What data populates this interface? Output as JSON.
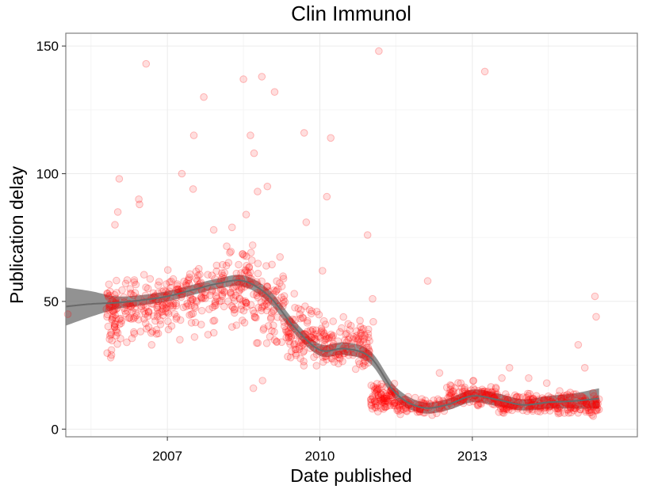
{
  "chart_data": {
    "type": "scatter",
    "title": "Clin Immunol",
    "xlabel": "Date published",
    "ylabel": "Publication delay",
    "xlim": [
      "2005-01-01",
      "2016-04-01"
    ],
    "ylim": [
      -3,
      155
    ],
    "x_ticks": [
      {
        "date": "2007-01-01",
        "label": "2007"
      },
      {
        "date": "2010-01-01",
        "label": "2010"
      },
      {
        "date": "2013-01-01",
        "label": "2013"
      }
    ],
    "y_ticks": [
      0,
      50,
      100,
      150
    ],
    "grid": true,
    "point_color": "#ff0000",
    "smooth_color": "#7f7f7f",
    "smooth_trend": [
      [
        "2005-01-01",
        48
      ],
      [
        "2005-07-01",
        49
      ],
      [
        "2006-01-01",
        49.5
      ],
      [
        "2006-07-01",
        50.5
      ],
      [
        "2007-01-01",
        52
      ],
      [
        "2007-07-01",
        54.5
      ],
      [
        "2008-01-01",
        57
      ],
      [
        "2008-07-01",
        58
      ],
      [
        "2009-01-01",
        52
      ],
      [
        "2009-07-01",
        40
      ],
      [
        "2010-01-01",
        31
      ],
      [
        "2010-07-01",
        31.5
      ],
      [
        "2011-01-01",
        28
      ],
      [
        "2011-07-01",
        14
      ],
      [
        "2012-01-01",
        8.5
      ],
      [
        "2012-07-01",
        9.5
      ],
      [
        "2013-01-01",
        13
      ],
      [
        "2013-07-01",
        11.5
      ],
      [
        "2014-01-01",
        9.5
      ],
      [
        "2014-07-01",
        10.5
      ],
      [
        "2015-01-01",
        11
      ],
      [
        "2015-07-01",
        12
      ]
    ],
    "smooth_band_halfwidth": [
      [
        "2005-01-01",
        7.5
      ],
      [
        "2005-07-01",
        5
      ],
      [
        "2006-01-01",
        2.5
      ],
      [
        "2006-07-01",
        2
      ],
      [
        "2007-01-01",
        2
      ],
      [
        "2007-07-01",
        2
      ],
      [
        "2008-01-01",
        2
      ],
      [
        "2008-07-01",
        2.2
      ],
      [
        "2009-01-01",
        2.5
      ],
      [
        "2009-07-01",
        2.5
      ],
      [
        "2010-01-01",
        2.3
      ],
      [
        "2010-07-01",
        2.5
      ],
      [
        "2011-01-01",
        2.5
      ],
      [
        "2011-07-01",
        2.5
      ],
      [
        "2012-01-01",
        2.2
      ],
      [
        "2012-07-01",
        2.2
      ],
      [
        "2013-01-01",
        2.5
      ],
      [
        "2013-07-01",
        2.5
      ],
      [
        "2014-01-01",
        2.2
      ],
      [
        "2014-07-01",
        2.5
      ],
      [
        "2015-01-01",
        3
      ],
      [
        "2015-07-01",
        4
      ]
    ],
    "points": [
      [
        "2005-01-15",
        45
      ],
      [
        "2006-08-01",
        143
      ],
      [
        "2008-07-01",
        137
      ],
      [
        "2008-11-10",
        138
      ],
      [
        "2009-02-10",
        132
      ],
      [
        "2007-09-20",
        130
      ],
      [
        "2011-03-01",
        148
      ],
      [
        "2013-04-01",
        140
      ],
      [
        "2008-08-20",
        115
      ],
      [
        "2009-09-10",
        116
      ],
      [
        "2010-03-20",
        114
      ],
      [
        "2007-07-10",
        115
      ],
      [
        "2008-09-15",
        108
      ],
      [
        "2006-01-20",
        98
      ],
      [
        "2007-04-15",
        100
      ],
      [
        "2008-12-20",
        95
      ],
      [
        "2010-02-20",
        91
      ],
      [
        "2008-10-10",
        93
      ],
      [
        "2006-06-10",
        90
      ],
      [
        "2006-06-15",
        88
      ],
      [
        "2007-07-05",
        94
      ],
      [
        "2009-09-25",
        81
      ],
      [
        "2006-01-10",
        85
      ],
      [
        "2008-07-20",
        84
      ],
      [
        "2008-04-10",
        79
      ],
      [
        "2005-12-20",
        80
      ],
      [
        "2007-11-30",
        78
      ],
      [
        "2010-12-10",
        76
      ],
      [
        "2008-09-05",
        72
      ],
      [
        "2010-01-20",
        62
      ],
      [
        "2009-07-01",
        53
      ],
      [
        "2009-12-10",
        46
      ],
      [
        "2010-10-20",
        40
      ],
      [
        "2011-01-15",
        51
      ],
      [
        "2011-01-20",
        42
      ],
      [
        "2012-02-15",
        58
      ],
      [
        "2012-05-10",
        22
      ],
      [
        "2012-10-10",
        18
      ],
      [
        "2013-08-01",
        20
      ],
      [
        "2013-09-25",
        24
      ],
      [
        "2014-02-10",
        20
      ],
      [
        "2014-06-20",
        18
      ],
      [
        "2015-02-01",
        33
      ],
      [
        "2015-06-01",
        52
      ],
      [
        "2015-06-10",
        44
      ],
      [
        "2015-03-20",
        24
      ],
      [
        "2008-11-15",
        19
      ],
      [
        "2008-09-10",
        16
      ],
      [
        "2005-11-25",
        29
      ],
      [
        "2005-11-25",
        31
      ],
      [
        "2005-11-20",
        28
      ],
      [
        "2006-03-15",
        34
      ],
      [
        "2006-09-10",
        33
      ],
      [
        "2007-04-01",
        35
      ],
      [
        "2007-10-20",
        37
      ],
      [
        "2008-04-10",
        40
      ]
    ],
    "point_clusters": [
      {
        "from": "2005-10-15",
        "to": "2006-02-01",
        "center": 44,
        "spread": 11,
        "n": 60
      },
      {
        "from": "2006-02-01",
        "to": "2007-01-01",
        "center": 48,
        "spread": 9,
        "n": 110
      },
      {
        "from": "2007-01-01",
        "to": "2008-01-01",
        "center": 52,
        "spread": 11,
        "n": 110
      },
      {
        "from": "2008-01-01",
        "to": "2008-09-01",
        "center": 57,
        "spread": 11,
        "n": 90
      },
      {
        "from": "2008-09-01",
        "to": "2009-05-01",
        "center": 50,
        "spread": 13,
        "n": 80
      },
      {
        "from": "2009-05-01",
        "to": "2010-01-01",
        "center": 36,
        "spread": 9,
        "n": 90
      },
      {
        "from": "2010-01-01",
        "to": "2011-01-01",
        "center": 32,
        "spread": 8,
        "n": 120
      },
      {
        "from": "2011-01-01",
        "to": "2011-07-01",
        "center": 12,
        "spread": 5,
        "n": 90
      },
      {
        "from": "2011-07-01",
        "to": "2012-07-01",
        "center": 9,
        "spread": 3,
        "n": 70
      },
      {
        "from": "2012-07-01",
        "to": "2013-07-01",
        "center": 13,
        "spread": 4,
        "n": 110
      },
      {
        "from": "2013-07-01",
        "to": "2014-07-01",
        "center": 10,
        "spread": 3,
        "n": 100
      },
      {
        "from": "2014-07-01",
        "to": "2015-07-01",
        "center": 10,
        "spread": 4,
        "n": 120
      }
    ]
  }
}
